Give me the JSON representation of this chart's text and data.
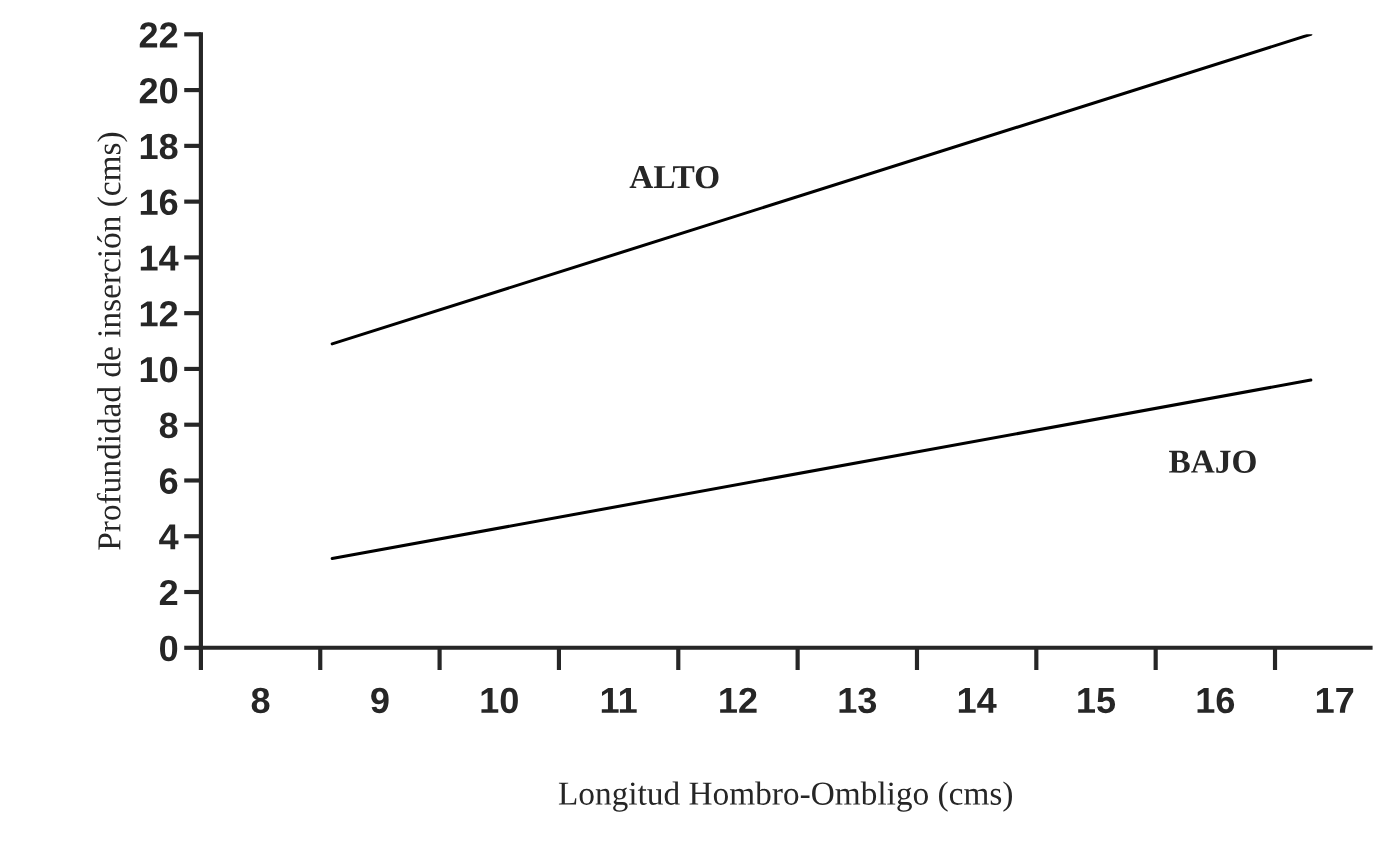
{
  "chart_data": {
    "type": "line",
    "xlabel": "Longitud Hombro-Ombligo (cms)",
    "ylabel": "Profundidad de inserción (cms)",
    "x": [
      8.6,
      16.8
    ],
    "series": [
      {
        "name": "ALTO",
        "color": "#000000",
        "values": [
          10.9,
          22.0
        ]
      },
      {
        "name": "BAJO",
        "color": "#000000",
        "values": [
          3.2,
          9.6
        ]
      }
    ],
    "xlim": [
      7.5,
      17.3
    ],
    "xticks": [
      {
        "value": 7.5,
        "label": null
      },
      8,
      {
        "value": 8.5,
        "label": null
      },
      9,
      {
        "value": 9.5,
        "label": null
      },
      10,
      {
        "value": 10.5,
        "label": null
      },
      11,
      {
        "value": 11.5,
        "label": null
      },
      12,
      {
        "value": 12.5,
        "label": null
      },
      13,
      {
        "value": 13.5,
        "label": null
      },
      14,
      {
        "value": 14.5,
        "label": null
      },
      15,
      {
        "value": 15.5,
        "label": null
      },
      16,
      {
        "value": 16.5,
        "label": null
      },
      17
    ],
    "ylim": [
      0,
      22
    ],
    "yticks": [
      0,
      2,
      4,
      6,
      8,
      10,
      12,
      14,
      16,
      18,
      20,
      22
    ],
    "grid": false,
    "legend": false,
    "marker": "none",
    "line_style": "solid"
  }
}
